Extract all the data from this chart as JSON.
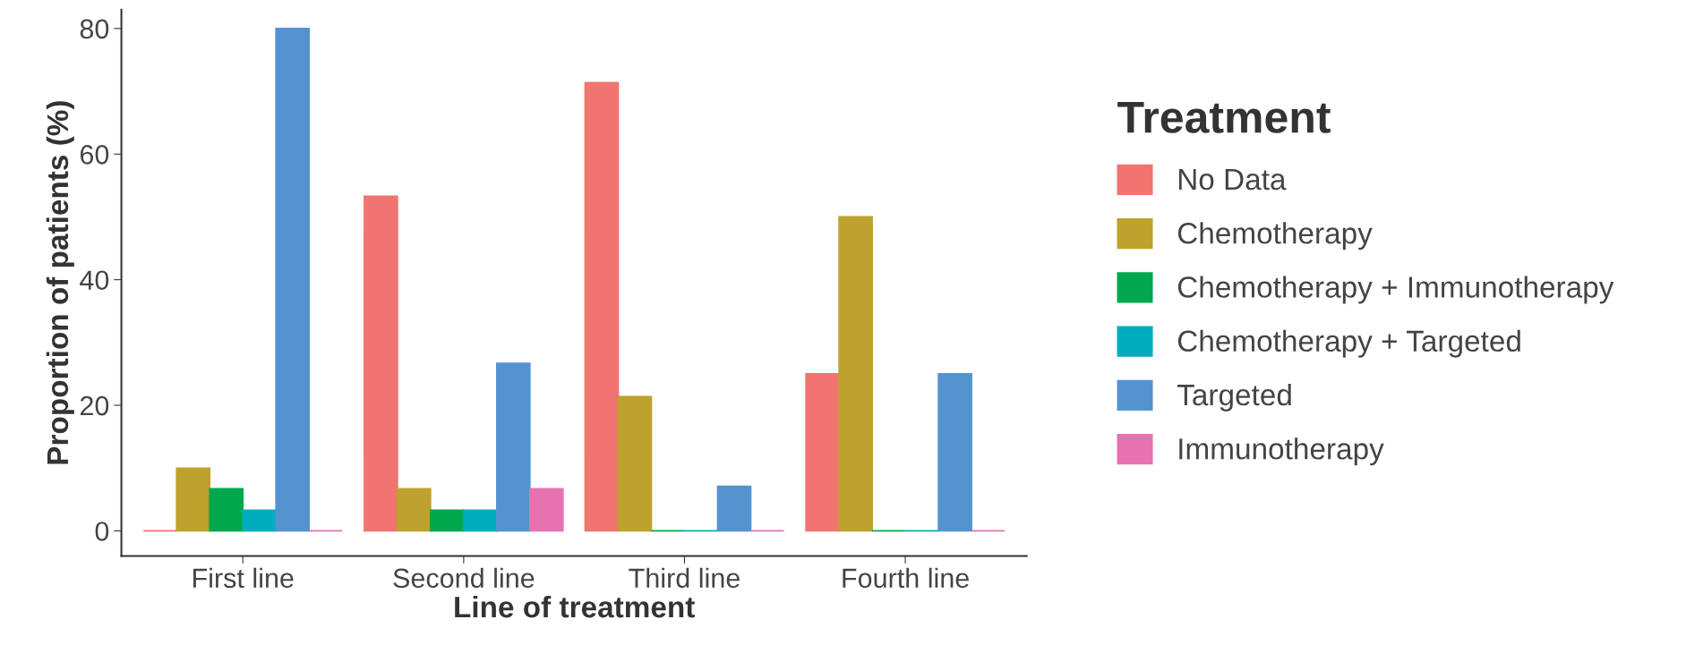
{
  "chart_data": {
    "type": "bar",
    "xlabel": "Line of treatment",
    "ylabel": "Proportion of patients (%)",
    "legend_title": "Treatment",
    "categories": [
      "First line",
      "Second line",
      "Third line",
      "Fourth line"
    ],
    "series": [
      {
        "name": "No Data",
        "color": "#f07470",
        "values": [
          0,
          53.3,
          71.4,
          25
        ]
      },
      {
        "name": "Chemotherapy",
        "color": "#bda22e",
        "values": [
          10,
          6.7,
          21.4,
          50
        ]
      },
      {
        "name": "Chemotherapy + Immunotherapy",
        "color": "#00a74c",
        "values": [
          6.7,
          3.3,
          0,
          0
        ]
      },
      {
        "name": "Chemotherapy + Targeted",
        "color": "#00adbd",
        "values": [
          3.3,
          3.3,
          0,
          0
        ]
      },
      {
        "name": "Targeted",
        "color": "#5593d0",
        "values": [
          80,
          26.7,
          7.1,
          25
        ]
      },
      {
        "name": "Immunotherapy",
        "color": "#e673b0",
        "values": [
          0,
          6.7,
          0,
          0
        ]
      }
    ],
    "ylim": [
      -4,
      83
    ],
    "yticks": [
      0,
      20,
      40,
      60,
      80
    ],
    "grid": false,
    "legend": "right"
  }
}
